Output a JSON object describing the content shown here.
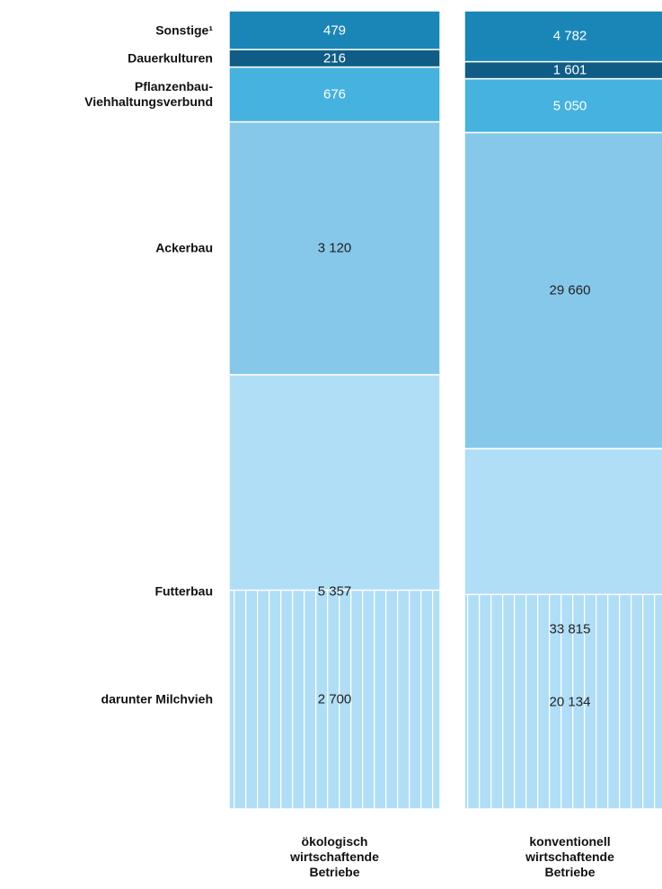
{
  "chart_data": {
    "type": "stacked_bar_100",
    "categories": [
      "ökologisch wirtschaftende Betriebe",
      "konventionell wirtschaftende Betriebe"
    ],
    "series": [
      {
        "name": "Sonstige¹",
        "color": "#1a86b8",
        "values": [
          479,
          4782
        ],
        "value_labels": [
          "479",
          "4 782"
        ]
      },
      {
        "name": "Dauerkulturen",
        "color": "#0f5d86",
        "values": [
          216,
          1601
        ],
        "value_labels": [
          "216",
          "1 601"
        ]
      },
      {
        "name": "Pflanzenbau-Viehhaltungsverbund",
        "color": "#45b2e0",
        "values": [
          676,
          5050
        ],
        "value_labels": [
          "676",
          "5 050"
        ]
      },
      {
        "name": "Ackerbau",
        "color": "#86c8ea",
        "values": [
          3120,
          29660
        ],
        "value_labels": [
          "3 120",
          "29 660"
        ]
      },
      {
        "name": "Futterbau",
        "color": "#b0def7",
        "values": [
          5357,
          33815
        ],
        "value_labels": [
          "5 357",
          "33 815"
        ]
      },
      {
        "name": "darunter Milchvieh",
        "color": "#b0def7",
        "hatch": true,
        "values": [
          2700,
          20134
        ],
        "value_labels": [
          "2 700",
          "20 134"
        ]
      }
    ]
  }
}
